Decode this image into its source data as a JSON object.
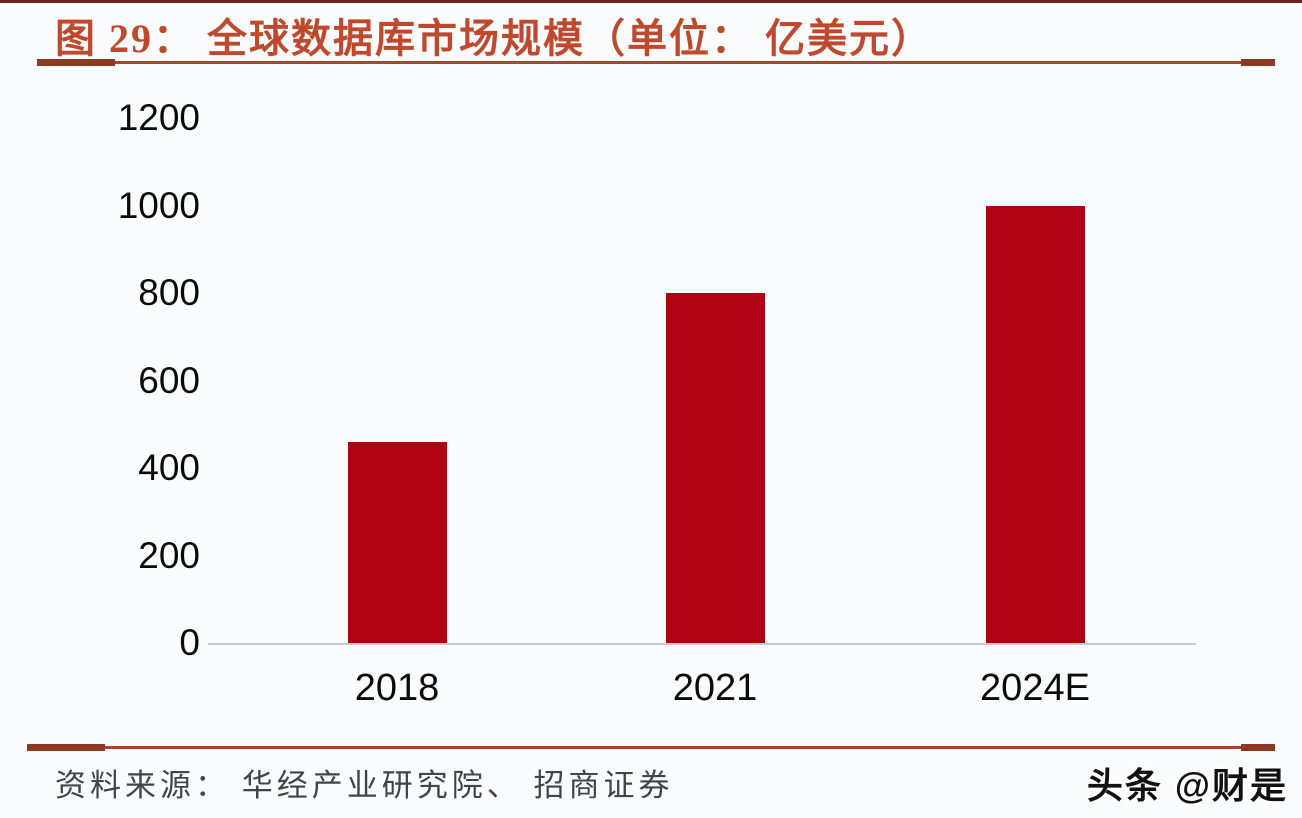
{
  "page": {
    "background": "#fbfcfe",
    "top_border_color": "#70201a"
  },
  "header": {
    "title": "图 29：  全球数据库市场规模（单位：  亿美元）",
    "title_color": "#c0492d",
    "underline_color": "#a5492b",
    "underline_cap_color": "#8c3a22"
  },
  "chart_data": {
    "type": "bar",
    "title": "全球数据库市场规模",
    "unit": "亿美元",
    "categories": [
      "2018",
      "2021",
      "2024E"
    ],
    "values": [
      460,
      800,
      1000
    ],
    "bar_color": "#b00213",
    "ylim": [
      0,
      1200
    ],
    "yticks": [
      0,
      200,
      400,
      600,
      800,
      1000,
      1200
    ],
    "grid": false,
    "legend": "none",
    "axis_line_color": "#c9c9c9",
    "tick_label_color": "#0a0a0a"
  },
  "footer": {
    "separator_color": "#a5492b",
    "source_label": "资料来源： 华经产业研究院、 招商证券",
    "watermark": "头条 @财是"
  }
}
